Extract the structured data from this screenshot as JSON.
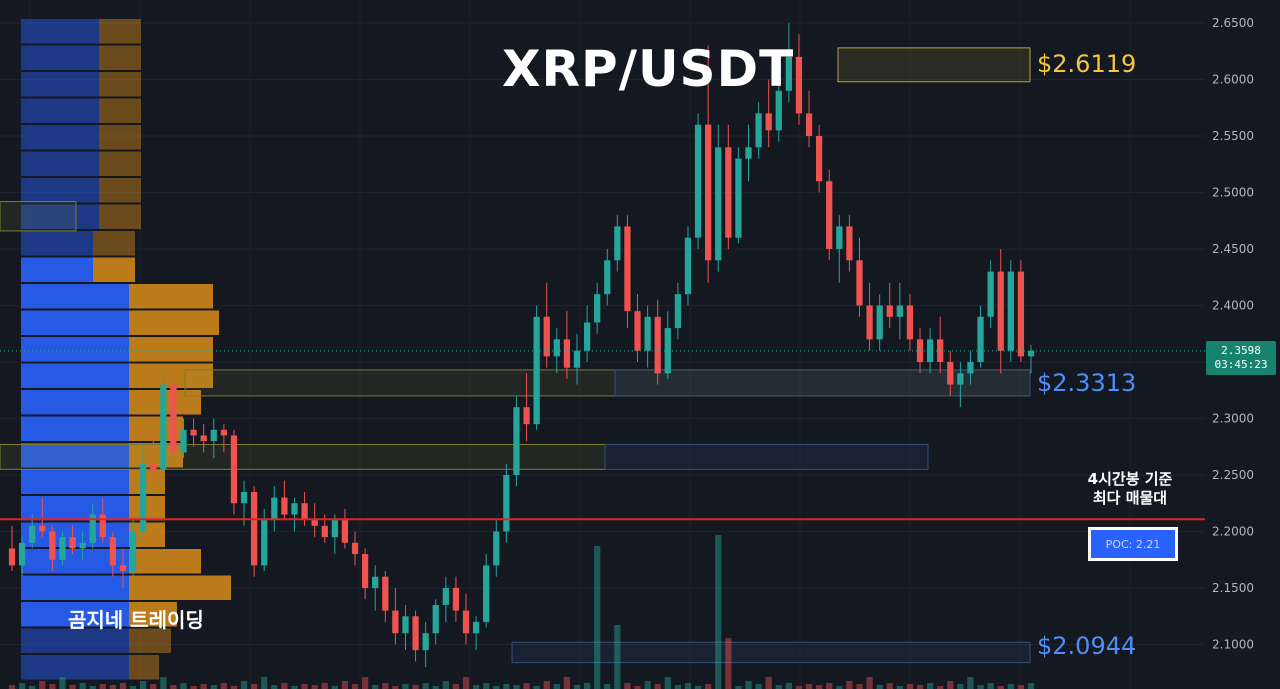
{
  "header": {
    "title": "XRP/USDT"
  },
  "annotations": {
    "watermark": "곰지네 트레이딩",
    "note_line1": "4시간봉 기준",
    "note_line2": "최다 매물대",
    "poc_label": "POC: 2.21"
  },
  "levels": [
    {
      "name": "resistance-2.6119",
      "price": 2.6119,
      "label": "$2.6119",
      "color": "#f5c542"
    },
    {
      "name": "support-2.3313",
      "price": 2.3313,
      "label": "$2.3313",
      "color": "#4f8ef7"
    },
    {
      "name": "support-2.0944",
      "price": 2.0944,
      "label": "$2.0944",
      "color": "#4f8ef7"
    }
  ],
  "last_price": {
    "value": "2.3598",
    "countdown": "03:45:23"
  },
  "colors": {
    "up": "#26a69a",
    "down": "#ef5350",
    "poc_line": "#e02424",
    "vp_up": "#2962ff",
    "vp_down": "#d4891a"
  },
  "chart_data": {
    "type": "candlestick",
    "symbol": "XRP/USDT",
    "timeframe": "4h",
    "y_axis": {
      "ticks": [
        "2.6500",
        "2.6000",
        "2.5500",
        "2.5000",
        "2.4500",
        "2.4000",
        "2.3500",
        "2.3000",
        "2.2500",
        "2.2000",
        "2.1500",
        "2.1000"
      ],
      "range": [
        2.06,
        2.67
      ]
    },
    "poc_price": 2.21,
    "ohlc": [
      [
        2.185,
        2.205,
        2.165,
        2.17
      ],
      [
        2.17,
        2.195,
        2.16,
        2.19
      ],
      [
        2.19,
        2.215,
        2.185,
        2.205
      ],
      [
        2.205,
        2.23,
        2.195,
        2.2
      ],
      [
        2.2,
        2.205,
        2.165,
        2.175
      ],
      [
        2.175,
        2.2,
        2.17,
        2.195
      ],
      [
        2.195,
        2.205,
        2.18,
        2.185
      ],
      [
        2.185,
        2.2,
        2.175,
        2.19
      ],
      [
        2.19,
        2.225,
        2.185,
        2.215
      ],
      [
        2.215,
        2.23,
        2.19,
        2.195
      ],
      [
        2.195,
        2.2,
        2.16,
        2.17
      ],
      [
        2.17,
        2.185,
        2.15,
        2.165
      ],
      [
        2.165,
        2.21,
        2.16,
        2.2
      ],
      [
        2.2,
        2.275,
        2.195,
        2.26
      ],
      [
        2.26,
        2.285,
        2.24,
        2.255
      ],
      [
        2.255,
        2.34,
        2.24,
        2.33
      ],
      [
        2.33,
        2.345,
        2.26,
        2.27
      ],
      [
        2.27,
        2.3,
        2.265,
        2.29
      ],
      [
        2.29,
        2.3,
        2.275,
        2.285
      ],
      [
        2.285,
        2.295,
        2.27,
        2.28
      ],
      [
        2.28,
        2.3,
        2.265,
        2.29
      ],
      [
        2.29,
        2.295,
        2.27,
        2.285
      ],
      [
        2.285,
        2.29,
        2.215,
        2.225
      ],
      [
        2.225,
        2.245,
        2.205,
        2.235
      ],
      [
        2.235,
        2.24,
        2.16,
        2.17
      ],
      [
        2.17,
        2.22,
        2.165,
        2.21
      ],
      [
        2.21,
        2.24,
        2.2,
        2.23
      ],
      [
        2.23,
        2.245,
        2.21,
        2.215
      ],
      [
        2.215,
        2.23,
        2.2,
        2.225
      ],
      [
        2.225,
        2.235,
        2.205,
        2.21
      ],
      [
        2.21,
        2.225,
        2.195,
        2.205
      ],
      [
        2.205,
        2.215,
        2.19,
        2.195
      ],
      [
        2.195,
        2.215,
        2.18,
        2.21
      ],
      [
        2.21,
        2.22,
        2.185,
        2.19
      ],
      [
        2.19,
        2.2,
        2.17,
        2.18
      ],
      [
        2.18,
        2.185,
        2.14,
        2.15
      ],
      [
        2.15,
        2.17,
        2.13,
        2.16
      ],
      [
        2.16,
        2.165,
        2.12,
        2.13
      ],
      [
        2.13,
        2.15,
        2.1,
        2.11
      ],
      [
        2.11,
        2.135,
        2.095,
        2.125
      ],
      [
        2.125,
        2.13,
        2.085,
        2.095
      ],
      [
        2.095,
        2.12,
        2.08,
        2.11
      ],
      [
        2.11,
        2.14,
        2.1,
        2.135
      ],
      [
        2.135,
        2.16,
        2.12,
        2.15
      ],
      [
        2.15,
        2.16,
        2.12,
        2.13
      ],
      [
        2.13,
        2.145,
        2.1,
        2.11
      ],
      [
        2.11,
        2.125,
        2.095,
        2.12
      ],
      [
        2.12,
        2.18,
        2.115,
        2.17
      ],
      [
        2.17,
        2.21,
        2.16,
        2.2
      ],
      [
        2.2,
        2.26,
        2.19,
        2.25
      ],
      [
        2.25,
        2.32,
        2.24,
        2.31
      ],
      [
        2.31,
        2.34,
        2.28,
        2.295
      ],
      [
        2.295,
        2.4,
        2.29,
        2.39
      ],
      [
        2.39,
        2.42,
        2.345,
        2.355
      ],
      [
        2.355,
        2.38,
        2.34,
        2.37
      ],
      [
        2.37,
        2.395,
        2.335,
        2.345
      ],
      [
        2.345,
        2.375,
        2.33,
        2.36
      ],
      [
        2.36,
        2.4,
        2.35,
        2.385
      ],
      [
        2.385,
        2.42,
        2.375,
        2.41
      ],
      [
        2.41,
        2.45,
        2.4,
        2.44
      ],
      [
        2.44,
        2.48,
        2.43,
        2.47
      ],
      [
        2.47,
        2.48,
        2.38,
        2.395
      ],
      [
        2.395,
        2.41,
        2.35,
        2.36
      ],
      [
        2.36,
        2.4,
        2.345,
        2.39
      ],
      [
        2.39,
        2.405,
        2.33,
        2.34
      ],
      [
        2.34,
        2.395,
        2.335,
        2.38
      ],
      [
        2.38,
        2.42,
        2.37,
        2.41
      ],
      [
        2.41,
        2.47,
        2.4,
        2.46
      ],
      [
        2.46,
        2.57,
        2.45,
        2.56
      ],
      [
        2.56,
        2.63,
        2.42,
        2.44
      ],
      [
        2.44,
        2.56,
        2.43,
        2.54
      ],
      [
        2.54,
        2.56,
        2.45,
        2.46
      ],
      [
        2.46,
        2.54,
        2.455,
        2.53
      ],
      [
        2.53,
        2.56,
        2.51,
        2.54
      ],
      [
        2.54,
        2.58,
        2.53,
        2.57
      ],
      [
        2.57,
        2.6,
        2.54,
        2.555
      ],
      [
        2.555,
        2.6,
        2.545,
        2.59
      ],
      [
        2.59,
        2.65,
        2.58,
        2.62
      ],
      [
        2.62,
        2.64,
        2.56,
        2.57
      ],
      [
        2.57,
        2.59,
        2.54,
        2.55
      ],
      [
        2.55,
        2.56,
        2.5,
        2.51
      ],
      [
        2.51,
        2.52,
        2.44,
        2.45
      ],
      [
        2.45,
        2.48,
        2.42,
        2.47
      ],
      [
        2.47,
        2.48,
        2.43,
        2.44
      ],
      [
        2.44,
        2.46,
        2.39,
        2.4
      ],
      [
        2.4,
        2.42,
        2.36,
        2.37
      ],
      [
        2.37,
        2.41,
        2.36,
        2.4
      ],
      [
        2.4,
        2.42,
        2.38,
        2.39
      ],
      [
        2.39,
        2.42,
        2.37,
        2.4
      ],
      [
        2.4,
        2.41,
        2.36,
        2.37
      ],
      [
        2.37,
        2.38,
        2.34,
        2.35
      ],
      [
        2.35,
        2.38,
        2.34,
        2.37
      ],
      [
        2.37,
        2.39,
        2.34,
        2.35
      ],
      [
        2.35,
        2.36,
        2.32,
        2.33
      ],
      [
        2.33,
        2.35,
        2.31,
        2.34
      ],
      [
        2.34,
        2.36,
        2.33,
        2.35
      ],
      [
        2.35,
        2.4,
        2.345,
        2.39
      ],
      [
        2.39,
        2.44,
        2.38,
        2.43
      ],
      [
        2.43,
        2.45,
        2.34,
        2.36
      ],
      [
        2.36,
        2.44,
        2.35,
        2.43
      ],
      [
        2.43,
        2.44,
        2.35,
        2.355
      ],
      [
        2.355,
        2.365,
        2.34,
        2.36
      ]
    ],
    "volume_profile": {
      "buy": [
        13,
        13,
        13,
        13,
        13,
        13,
        13,
        13,
        12,
        12,
        18,
        18,
        18,
        18,
        18,
        18,
        18,
        18,
        18,
        18,
        18,
        18,
        18,
        18,
        18
      ],
      "sell": [
        7,
        7,
        7,
        7,
        7,
        7,
        7,
        7,
        7,
        7,
        14,
        15,
        14,
        14,
        12,
        9,
        9,
        6,
        6,
        6,
        12,
        17,
        8,
        7,
        5
      ]
    }
  }
}
